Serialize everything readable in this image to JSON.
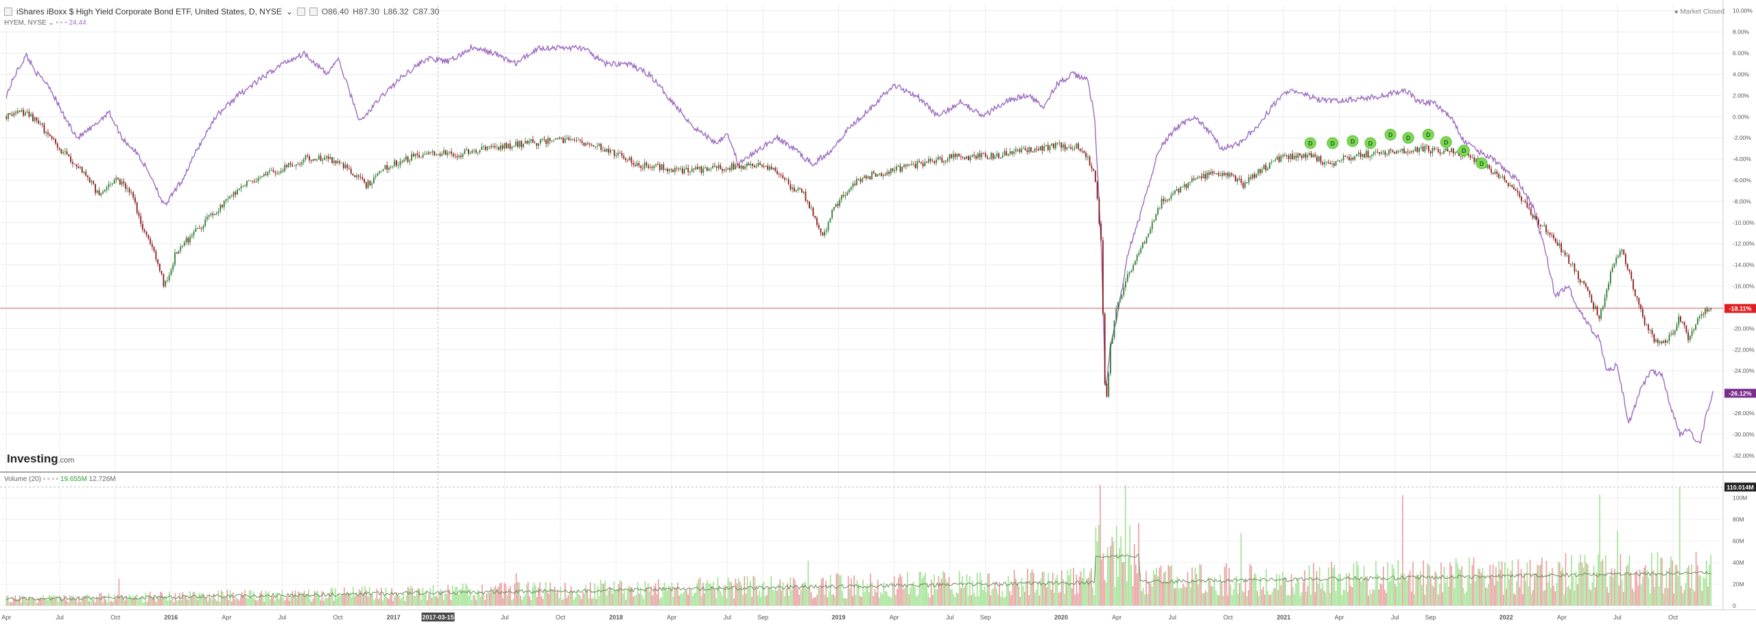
{
  "header": {
    "title": "iShares iBoxx $ High Yield Corporate Bond ETF, United States, D, NYSE",
    "open": "O86.40",
    "high": "H87.30",
    "low": "L86.32",
    "close": "C87.30",
    "compare_symbol": "HYEM, NYSE",
    "compare_value": "24.44"
  },
  "market_status": "Market Closed",
  "logo": {
    "brand": "Investing",
    "suffix": ".com"
  },
  "volume_panel": {
    "title": "Volume (20)",
    "value_green": "19.655M",
    "value_dark": "12.726M"
  },
  "crosshair_date": "2017-03-15",
  "price_labels": {
    "current": "-18.11%",
    "compare": "-26.12%",
    "volume_max": "110.014M"
  },
  "colors": {
    "up": "#2e7d32",
    "down": "#8b1a1a",
    "compare": "#9c6bbf",
    "vol_up": "#9ee28f",
    "vol_down": "#e79b9b",
    "ref_line": "#d98a8a",
    "dividend_marker": "#7ed957",
    "current_label_bg": "#e02020",
    "compare_label_bg": "#7b2b8c"
  },
  "chart_data": [
    {
      "type": "line",
      "x_ticks": [
        "Apr",
        "Jul",
        "Oct",
        "2016",
        "Apr",
        "Jul",
        "Oct",
        "2017",
        "Jul",
        "Oct",
        "2018",
        "Apr",
        "Jul",
        "Sep",
        "2019",
        "Apr",
        "Jul",
        "Sep",
        "2020",
        "Apr",
        "Jul",
        "Oct",
        "2021",
        "Apr",
        "Jul",
        "Sep",
        "2022",
        "Apr",
        "Jul",
        "Oct"
      ],
      "y_ticks": [
        "10.00%",
        "8.00%",
        "6.00%",
        "4.00%",
        "2.00%",
        "0.00%",
        "-2.00%",
        "-4.00%",
        "-6.00%",
        "-8.00%",
        "-10.00%",
        "-12.00%",
        "-14.00%",
        "-16.00%",
        "-18.00%",
        "-20.00%",
        "-22.00%",
        "-24.00%",
        "-26.00%",
        "-28.00%",
        "-30.00%",
        "-32.00%"
      ],
      "ylim": [
        -33.5,
        10.5
      ],
      "xlim": [
        2015.25,
        2022.95
      ],
      "reference_line": -18.11,
      "series": [
        {
          "name": "iShares iBoxx $ High Yield Corporate Bond ETF",
          "style": "candles",
          "points": [
            [
              2015.26,
              0
            ],
            [
              2015.35,
              0.5
            ],
            [
              2015.42,
              -1
            ],
            [
              2015.5,
              -3
            ],
            [
              2015.6,
              -5
            ],
            [
              2015.68,
              -7.5
            ],
            [
              2015.75,
              -6
            ],
            [
              2015.82,
              -7
            ],
            [
              2015.88,
              -11
            ],
            [
              2015.93,
              -13
            ],
            [
              2015.97,
              -16
            ],
            [
              2016.02,
              -13
            ],
            [
              2016.1,
              -11
            ],
            [
              2016.2,
              -9
            ],
            [
              2016.3,
              -7
            ],
            [
              2016.4,
              -5.5
            ],
            [
              2016.5,
              -5
            ],
            [
              2016.6,
              -4
            ],
            [
              2016.7,
              -3.8
            ],
            [
              2016.8,
              -5
            ],
            [
              2016.88,
              -6.5
            ],
            [
              2016.95,
              -5
            ],
            [
              2017.05,
              -4
            ],
            [
              2017.15,
              -3.5
            ],
            [
              2017.3,
              -3.5
            ],
            [
              2017.45,
              -3
            ],
            [
              2017.6,
              -2.5
            ],
            [
              2017.75,
              -2.2
            ],
            [
              2017.9,
              -2.5
            ],
            [
              2018.0,
              -3.5
            ],
            [
              2018.1,
              -4.5
            ],
            [
              2018.2,
              -4.8
            ],
            [
              2018.3,
              -5.2
            ],
            [
              2018.4,
              -5
            ],
            [
              2018.5,
              -4.8
            ],
            [
              2018.6,
              -4.5
            ],
            [
              2018.7,
              -4.8
            ],
            [
              2018.78,
              -6.5
            ],
            [
              2018.85,
              -7.5
            ],
            [
              2018.93,
              -11.5
            ],
            [
              2018.97,
              -9
            ],
            [
              2019.05,
              -6.5
            ],
            [
              2019.15,
              -5.5
            ],
            [
              2019.25,
              -5
            ],
            [
              2019.35,
              -4.5
            ],
            [
              2019.45,
              -4
            ],
            [
              2019.55,
              -3.8
            ],
            [
              2019.65,
              -3.8
            ],
            [
              2019.75,
              -3.5
            ],
            [
              2019.85,
              -3.2
            ],
            [
              2019.95,
              -2.8
            ],
            [
              2020.08,
              -2.8
            ],
            [
              2020.15,
              -5
            ],
            [
              2020.18,
              -12
            ],
            [
              2020.2,
              -28
            ],
            [
              2020.22,
              -22
            ],
            [
              2020.25,
              -18
            ],
            [
              2020.3,
              -15
            ],
            [
              2020.38,
              -11.5
            ],
            [
              2020.45,
              -8
            ],
            [
              2020.55,
              -6.5
            ],
            [
              2020.65,
              -5.5
            ],
            [
              2020.75,
              -5.5
            ],
            [
              2020.82,
              -6.5
            ],
            [
              2020.9,
              -5
            ],
            [
              2020.97,
              -4
            ],
            [
              2021.05,
              -3.8
            ],
            [
              2021.12,
              -3.5
            ],
            [
              2021.2,
              -4.5
            ],
            [
              2021.3,
              -3.8
            ],
            [
              2021.4,
              -3.5
            ],
            [
              2021.5,
              -3.3
            ],
            [
              2021.6,
              -3.0
            ],
            [
              2021.7,
              -3.2
            ],
            [
              2021.78,
              -3.3
            ],
            [
              2021.85,
              -4.0
            ],
            [
              2021.9,
              -4.5
            ],
            [
              2021.97,
              -5.5
            ],
            [
              2022.05,
              -7
            ],
            [
              2022.12,
              -9.5
            ],
            [
              2022.2,
              -11
            ],
            [
              2022.28,
              -13.5
            ],
            [
              2022.35,
              -16
            ],
            [
              2022.42,
              -19
            ],
            [
              2022.48,
              -14
            ],
            [
              2022.52,
              -12.5
            ],
            [
              2022.57,
              -16
            ],
            [
              2022.62,
              -19.5
            ],
            [
              2022.68,
              -21.5
            ],
            [
              2022.73,
              -21
            ],
            [
              2022.78,
              -19
            ],
            [
              2022.82,
              -21
            ],
            [
              2022.87,
              -18.5
            ],
            [
              2022.92,
              -18.11
            ]
          ]
        },
        {
          "name": "HYEM",
          "style": "line",
          "points": [
            [
              2015.26,
              2
            ],
            [
              2015.3,
              4
            ],
            [
              2015.35,
              5.8
            ],
            [
              2015.4,
              4
            ],
            [
              2015.45,
              3
            ],
            [
              2015.52,
              0
            ],
            [
              2015.58,
              -2
            ],
            [
              2015.65,
              -1
            ],
            [
              2015.72,
              0.5
            ],
            [
              2015.78,
              -2
            ],
            [
              2015.85,
              -3.5
            ],
            [
              2015.92,
              -6
            ],
            [
              2015.97,
              -8.5
            ],
            [
              2016.05,
              -6
            ],
            [
              2016.12,
              -3
            ],
            [
              2016.2,
              0
            ],
            [
              2016.3,
              2
            ],
            [
              2016.4,
              3.5
            ],
            [
              2016.5,
              5
            ],
            [
              2016.6,
              6
            ],
            [
              2016.65,
              5
            ],
            [
              2016.7,
              4
            ],
            [
              2016.75,
              5.5
            ],
            [
              2016.85,
              -0.5
            ],
            [
              2016.95,
              2
            ],
            [
              2017.05,
              4
            ],
            [
              2017.15,
              5.5
            ],
            [
              2017.25,
              5.2
            ],
            [
              2017.35,
              6.5
            ],
            [
              2017.45,
              6
            ],
            [
              2017.55,
              5
            ],
            [
              2017.65,
              6.5
            ],
            [
              2017.75,
              6.5
            ],
            [
              2017.85,
              6.5
            ],
            [
              2017.95,
              5
            ],
            [
              2018.05,
              5
            ],
            [
              2018.15,
              4
            ],
            [
              2018.25,
              1.5
            ],
            [
              2018.35,
              -1
            ],
            [
              2018.45,
              -2.5
            ],
            [
              2018.5,
              -1.5
            ],
            [
              2018.55,
              -4.5
            ],
            [
              2018.65,
              -3
            ],
            [
              2018.72,
              -2
            ],
            [
              2018.8,
              -3
            ],
            [
              2018.88,
              -4.5
            ],
            [
              2018.95,
              -3.5
            ],
            [
              2019.05,
              -1
            ],
            [
              2019.15,
              1
            ],
            [
              2019.25,
              3
            ],
            [
              2019.35,
              2
            ],
            [
              2019.45,
              0
            ],
            [
              2019.55,
              1.5
            ],
            [
              2019.65,
              0
            ],
            [
              2019.75,
              1.5
            ],
            [
              2019.85,
              2
            ],
            [
              2019.92,
              1
            ],
            [
              2019.98,
              3
            ],
            [
              2020.05,
              4
            ],
            [
              2020.12,
              3.5
            ],
            [
              2020.15,
              0
            ],
            [
              2020.18,
              -12
            ],
            [
              2020.2,
              -26
            ],
            [
              2020.22,
              -22
            ],
            [
              2020.26,
              -18
            ],
            [
              2020.3,
              -13
            ],
            [
              2020.36,
              -9
            ],
            [
              2020.44,
              -3
            ],
            [
              2020.52,
              -1
            ],
            [
              2020.6,
              0
            ],
            [
              2020.67,
              -1.5
            ],
            [
              2020.72,
              -3
            ],
            [
              2020.8,
              -2.5
            ],
            [
              2020.88,
              -1
            ],
            [
              2020.95,
              1
            ],
            [
              2021.02,
              2.5
            ],
            [
              2021.1,
              2
            ],
            [
              2021.18,
              1.5
            ],
            [
              2021.25,
              1.5
            ],
            [
              2021.35,
              1.7
            ],
            [
              2021.45,
              2
            ],
            [
              2021.55,
              2.5
            ],
            [
              2021.6,
              1.5
            ],
            [
              2021.68,
              1.2
            ],
            [
              2021.75,
              0
            ],
            [
              2021.8,
              -2
            ],
            [
              2021.85,
              -3
            ],
            [
              2021.9,
              -3.5
            ],
            [
              2021.97,
              -4.5
            ],
            [
              2022.05,
              -6
            ],
            [
              2022.12,
              -8.5
            ],
            [
              2022.18,
              -13
            ],
            [
              2022.22,
              -17
            ],
            [
              2022.28,
              -16
            ],
            [
              2022.32,
              -18
            ],
            [
              2022.38,
              -20
            ],
            [
              2022.42,
              -21
            ],
            [
              2022.45,
              -24
            ],
            [
              2022.5,
              -23.5
            ],
            [
              2022.55,
              -29
            ],
            [
              2022.6,
              -26
            ],
            [
              2022.65,
              -24
            ],
            [
              2022.7,
              -24.5
            ],
            [
              2022.74,
              -27.5
            ],
            [
              2022.78,
              -30
            ],
            [
              2022.82,
              -29.5
            ],
            [
              2022.87,
              -31
            ],
            [
              2022.9,
              -28
            ],
            [
              2022.93,
              -26.12
            ]
          ]
        }
      ],
      "dividend_markers": {
        "label": "D",
        "dates": [
          2021.12,
          2021.22,
          2021.31,
          2021.39,
          2021.48,
          2021.56,
          2021.65,
          2021.73,
          2021.81,
          2021.89
        ],
        "values": [
          -2.5,
          -2.5,
          -2.3,
          -2.5,
          -1.7,
          -2,
          -1.7,
          -2.4,
          -3.2,
          -4.4
        ]
      }
    },
    {
      "type": "bar",
      "name": "Volume",
      "y_ticks": [
        "100M",
        "80M",
        "60M",
        "40M",
        "20M",
        "0"
      ],
      "ylim": [
        0,
        115
      ],
      "vol_max": 110.014
    }
  ]
}
